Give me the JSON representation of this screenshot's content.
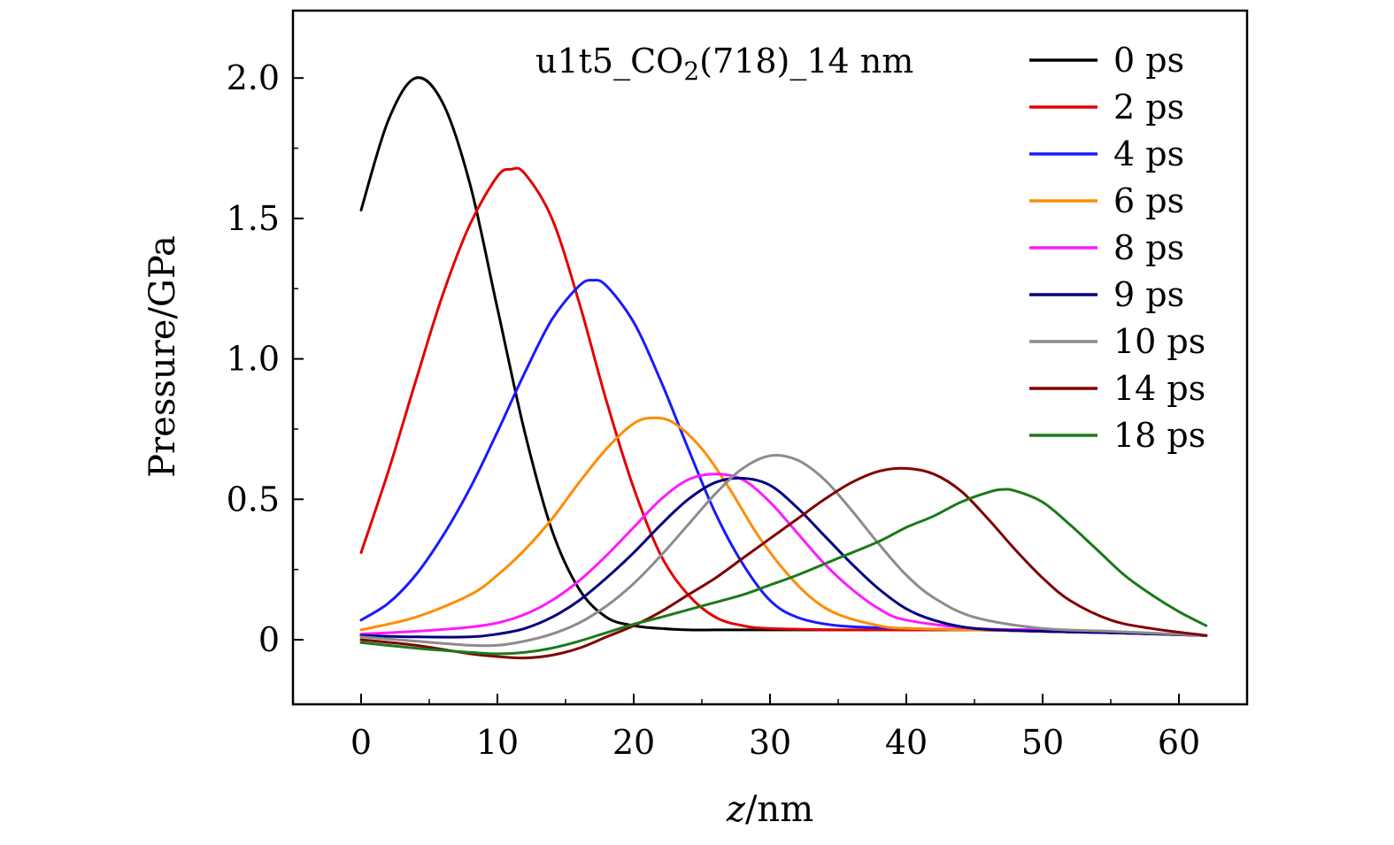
{
  "chart_data": {
    "type": "line",
    "title": "",
    "annotation": {
      "prefix": "u1t5_CO",
      "subscript": "2",
      "suffix": "(718)_14 nm"
    },
    "xlabel": {
      "italic": "z",
      "rest": "/nm"
    },
    "ylabel": "Pressure/GPa",
    "xlim": [
      -5,
      65
    ],
    "ylim": [
      -0.23,
      2.24
    ],
    "x_ticks": [
      0,
      10,
      20,
      30,
      40,
      50,
      60
    ],
    "x_tick_labels": [
      "0",
      "10",
      "20",
      "30",
      "40",
      "50",
      "60"
    ],
    "y_ticks": [
      0,
      0.5,
      1.0,
      1.5,
      2.0
    ],
    "y_tick_labels": [
      "0",
      "0.5",
      "1.0",
      "1.5",
      "2.0"
    ],
    "grid": false,
    "legend_position": "top-right",
    "series": [
      {
        "name": "0 ps",
        "color": "#000000",
        "x": [
          0,
          2,
          4,
          6,
          8,
          10,
          12,
          14,
          16,
          18,
          20,
          22,
          24,
          26,
          28,
          30,
          35,
          40,
          45,
          50,
          55,
          62
        ],
        "y": [
          1.53,
          1.85,
          2.0,
          1.91,
          1.62,
          1.18,
          0.74,
          0.39,
          0.18,
          0.08,
          0.05,
          0.04,
          0.035,
          0.035,
          0.035,
          0.035,
          0.035,
          0.035,
          0.035,
          0.03,
          0.025,
          0.015
        ]
      },
      {
        "name": "2 ps",
        "color": "#e30000",
        "x": [
          0,
          2,
          4,
          6,
          8,
          10,
          11,
          12,
          14,
          16,
          18,
          20,
          22,
          24,
          26,
          28,
          30,
          35,
          40,
          45,
          50,
          55,
          62
        ],
        "y": [
          0.31,
          0.6,
          0.92,
          1.23,
          1.48,
          1.65,
          1.675,
          1.66,
          1.5,
          1.2,
          0.85,
          0.54,
          0.3,
          0.16,
          0.08,
          0.05,
          0.04,
          0.035,
          0.035,
          0.035,
          0.03,
          0.025,
          0.015
        ]
      },
      {
        "name": "4 ps",
        "color": "#1a1aff",
        "x": [
          0,
          2,
          4,
          6,
          8,
          10,
          12,
          14,
          16,
          17,
          18,
          20,
          22,
          24,
          26,
          28,
          30,
          32,
          35,
          40,
          45,
          50,
          55,
          62
        ],
        "y": [
          0.07,
          0.13,
          0.23,
          0.37,
          0.54,
          0.74,
          0.95,
          1.14,
          1.26,
          1.28,
          1.26,
          1.13,
          0.92,
          0.68,
          0.45,
          0.27,
          0.14,
          0.08,
          0.05,
          0.04,
          0.035,
          0.03,
          0.025,
          0.015
        ]
      },
      {
        "name": "6 ps",
        "color": "#ff8c00",
        "x": [
          0,
          4,
          8,
          10,
          12,
          14,
          16,
          18,
          20,
          21.5,
          23,
          25,
          27,
          29,
          31,
          33,
          35,
          38,
          40,
          45,
          50,
          55,
          62
        ],
        "y": [
          0.035,
          0.08,
          0.16,
          0.23,
          0.32,
          0.43,
          0.56,
          0.68,
          0.77,
          0.79,
          0.77,
          0.68,
          0.54,
          0.38,
          0.25,
          0.15,
          0.09,
          0.05,
          0.04,
          0.035,
          0.03,
          0.025,
          0.015
        ]
      },
      {
        "name": "8 ps",
        "color": "#ff1aff",
        "x": [
          0,
          4,
          8,
          10,
          12,
          14,
          16,
          18,
          20,
          22,
          24,
          26,
          28,
          30,
          32,
          34,
          36,
          38,
          40,
          45,
          50,
          55,
          62
        ],
        "y": [
          0.02,
          0.03,
          0.045,
          0.06,
          0.09,
          0.14,
          0.21,
          0.3,
          0.4,
          0.5,
          0.57,
          0.59,
          0.57,
          0.49,
          0.38,
          0.27,
          0.18,
          0.11,
          0.07,
          0.04,
          0.035,
          0.025,
          0.015
        ]
      },
      {
        "name": "9 ps",
        "color": "#000080",
        "x": [
          0,
          4,
          8,
          10,
          12,
          14,
          16,
          18,
          20,
          22,
          24,
          26,
          28,
          30,
          32,
          34,
          36,
          38,
          40,
          42,
          45,
          50,
          55,
          62
        ],
        "y": [
          0.015,
          0.01,
          0.01,
          0.02,
          0.04,
          0.08,
          0.14,
          0.22,
          0.31,
          0.41,
          0.5,
          0.56,
          0.575,
          0.55,
          0.47,
          0.37,
          0.27,
          0.18,
          0.11,
          0.07,
          0.04,
          0.03,
          0.025,
          0.015
        ]
      },
      {
        "name": "10 ps",
        "color": "#8c8c8c",
        "x": [
          0,
          4,
          8,
          10,
          12,
          14,
          16,
          18,
          20,
          22,
          24,
          26,
          28,
          30,
          32,
          34,
          36,
          38,
          40,
          42,
          45,
          50,
          55,
          62
        ],
        "y": [
          0.01,
          -0.005,
          -0.02,
          -0.02,
          -0.005,
          0.02,
          0.06,
          0.12,
          0.2,
          0.3,
          0.41,
          0.52,
          0.61,
          0.655,
          0.64,
          0.57,
          0.46,
          0.34,
          0.23,
          0.15,
          0.08,
          0.04,
          0.03,
          0.015
        ]
      },
      {
        "name": "14 ps",
        "color": "#800000",
        "x": [
          0,
          4,
          8,
          10,
          12,
          14,
          16,
          18,
          20,
          22,
          24,
          26,
          28,
          30,
          32,
          34,
          36,
          38,
          40,
          42,
          44,
          46,
          48,
          50,
          52,
          55,
          58,
          62
        ],
        "y": [
          0.0,
          -0.02,
          -0.05,
          -0.06,
          -0.065,
          -0.055,
          -0.03,
          0.01,
          0.05,
          0.1,
          0.16,
          0.22,
          0.29,
          0.36,
          0.43,
          0.5,
          0.56,
          0.6,
          0.61,
          0.59,
          0.53,
          0.43,
          0.32,
          0.22,
          0.14,
          0.07,
          0.04,
          0.015
        ]
      },
      {
        "name": "18 ps",
        "color": "#1a7a1a",
        "x": [
          0,
          4,
          8,
          10,
          12,
          14,
          16,
          18,
          20,
          22,
          25,
          28,
          30,
          32,
          35,
          38,
          40,
          42,
          44,
          46,
          47,
          48,
          50,
          52,
          54,
          56,
          58,
          60,
          62
        ],
        "y": [
          -0.01,
          -0.03,
          -0.045,
          -0.05,
          -0.045,
          -0.03,
          -0.005,
          0.025,
          0.055,
          0.08,
          0.12,
          0.16,
          0.195,
          0.23,
          0.29,
          0.35,
          0.4,
          0.44,
          0.49,
          0.525,
          0.535,
          0.53,
          0.49,
          0.41,
          0.32,
          0.23,
          0.16,
          0.1,
          0.05
        ]
      }
    ]
  }
}
